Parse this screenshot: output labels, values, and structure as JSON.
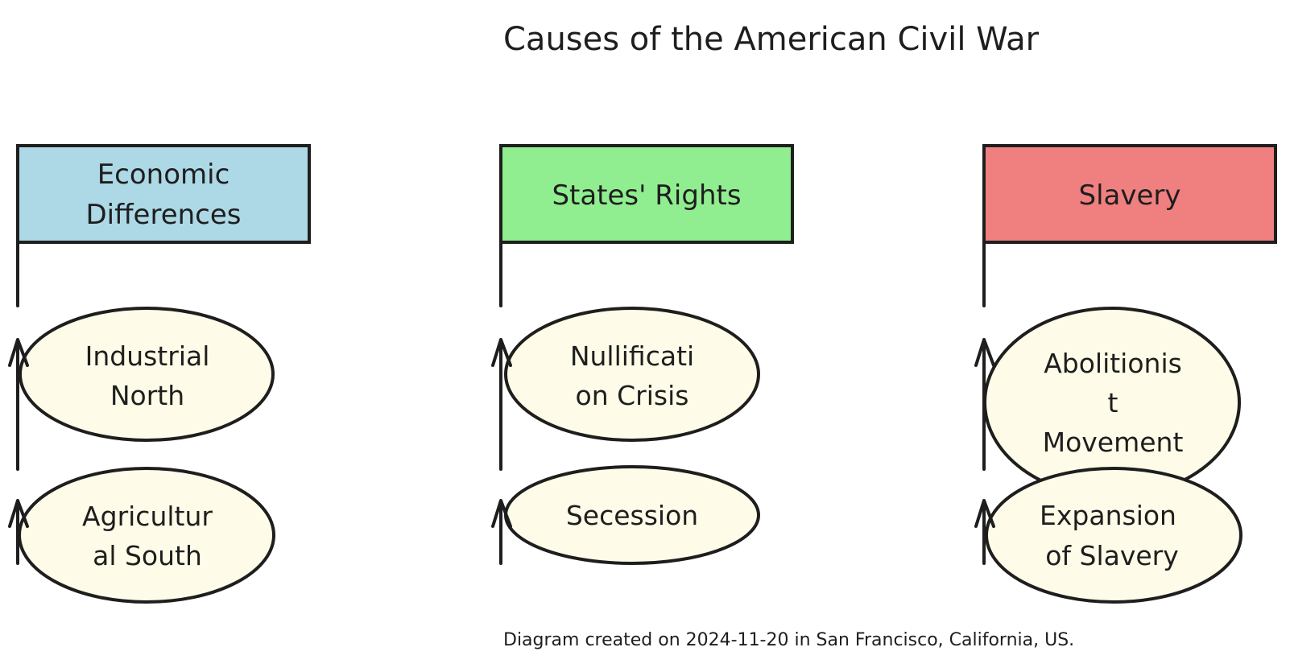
{
  "diagram": {
    "title": "Causes of the American Civil War",
    "footer": "Diagram created on 2024-11-20 in San Francisco, California, US.",
    "colors": {
      "stroke": "#1e1e1e",
      "economic": "#add8e6",
      "states_rights": "#90ee90",
      "slavery": "#f08080",
      "node_fill": "#fefce8"
    },
    "categories": [
      {
        "id": "economic",
        "header_lines": [
          "Economic",
          "Differences"
        ],
        "causes": [
          {
            "lines": [
              "Industrial",
              "North"
            ]
          },
          {
            "lines": [
              "Agricultur",
              "al South"
            ]
          }
        ]
      },
      {
        "id": "states-rights",
        "header_lines": [
          "States' Rights"
        ],
        "causes": [
          {
            "lines": [
              "Nullificati",
              "on Crisis"
            ]
          },
          {
            "lines": [
              "Secession"
            ]
          }
        ]
      },
      {
        "id": "slavery",
        "header_lines": [
          "Slavery"
        ],
        "causes": [
          {
            "lines": [
              "Abolitionis",
              "t",
              "Movement"
            ]
          },
          {
            "lines": [
              "Expansion",
              "of Slavery"
            ]
          }
        ]
      }
    ]
  }
}
